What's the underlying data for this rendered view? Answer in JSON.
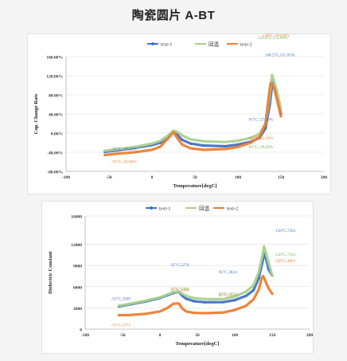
{
  "page": {
    "title": "陶瓷圆片 A-BT"
  },
  "chart_data": [
    {
      "type": "line",
      "xlabel": "Temperature[degC]",
      "ylabel": "Cap. Change Rate",
      "xlim": [
        -100,
        200
      ],
      "ylim": [
        -80,
        160
      ],
      "x_ticks": [
        "-100",
        "-50",
        "0",
        "50",
        "100",
        "150",
        "200"
      ],
      "y_ticks": [
        "-80.00%",
        "-40.00%",
        "0.00%",
        "40.00%",
        "80.00%",
        "120.00%",
        "160.00%"
      ],
      "grid": true,
      "legend_position": "top",
      "series": [
        {
          "name": "test-1",
          "color": "#4472c4",
          "marker": "circle",
          "points": [
            [
              -55,
              -39.21
            ],
            [
              -40,
              -36
            ],
            [
              -20,
              -31
            ],
            [
              0,
              -25
            ],
            [
              10,
              -20
            ],
            [
              18,
              -12
            ],
            [
              25,
              3
            ],
            [
              30,
              -5
            ],
            [
              35,
              -14
            ],
            [
              45,
              -22
            ],
            [
              60,
              -26
            ],
            [
              85,
              -27.56
            ],
            [
              100,
              -24
            ],
            [
              115,
              -18
            ],
            [
              125,
              -10
            ],
            [
              132,
              10
            ],
            [
              137,
              60
            ],
            [
              140.5,
              111.01
            ],
            [
              145,
              80
            ],
            [
              150,
              40
            ]
          ]
        },
        {
          "name": "回温",
          "color": "#a9d18e",
          "marker": "none",
          "points": [
            [
              -55,
              -37
            ],
            [
              -40,
              -34
            ],
            [
              -20,
              -29
            ],
            [
              0,
              -22
            ],
            [
              10,
              -16
            ],
            [
              18,
              -6
            ],
            [
              25,
              5
            ],
            [
              30,
              2
            ],
            [
              35,
              -5
            ],
            [
              45,
              -13
            ],
            [
              60,
              -17
            ],
            [
              85,
              -18.69
            ],
            [
              100,
              -16
            ],
            [
              115,
              -10
            ],
            [
              125,
              -2
            ],
            [
              132,
              20
            ],
            [
              137,
              80
            ],
            [
              139.6,
              121.66
            ],
            [
              145,
              90
            ],
            [
              150,
              50
            ]
          ]
        },
        {
          "name": "test-2",
          "color": "#ed7d31",
          "marker": "none",
          "points": [
            [
              -55,
              -45.86
            ],
            [
              -40,
              -43
            ],
            [
              -20,
              -40
            ],
            [
              0,
              -35
            ],
            [
              10,
              -28
            ],
            [
              18,
              -12
            ],
            [
              25,
              2
            ],
            [
              30,
              -12
            ],
            [
              35,
              -24
            ],
            [
              45,
              -32
            ],
            [
              60,
              -35
            ],
            [
              85,
              -33.39
            ],
            [
              100,
              -29
            ],
            [
              115,
              -20
            ],
            [
              125,
              -8
            ],
            [
              132,
              20
            ],
            [
              136,
              80
            ],
            [
              138,
              104.64
            ],
            [
              142,
              95
            ],
            [
              150,
              35
            ]
          ]
        }
      ],
      "annotations": [
        {
          "text": "-55°C,-39.21%",
          "color": "#4472c4",
          "x": -55,
          "y": -39.21
        },
        {
          "text": "-55°C,-45.86%",
          "color": "#ed7d31",
          "x": -55,
          "y": -45.86
        },
        {
          "text": "85°C,-27.56%",
          "color": "#4472c4",
          "x": 85,
          "y": -27.56
        },
        {
          "text": "85°C,-33.39%",
          "color": "#ed7d31",
          "x": 85,
          "y": -33.39
        },
        {
          "text": "85°C,-18.69%",
          "color": "#70ad47",
          "x": 85,
          "y": -18.69
        },
        {
          "text": "138°C,104.64%",
          "color": "#ed7d31",
          "x": 138,
          "y": 104.64
        },
        {
          "text": "139.6°C,121.66%",
          "color": "#70ad47",
          "x": 139.6,
          "y": 121.66
        },
        {
          "text": "140.5°C,111.01%",
          "color": "#4472c4",
          "x": 140.5,
          "y": 111.01
        }
      ]
    },
    {
      "type": "line",
      "xlabel": "Temperature[degC]",
      "ylabel": "Dielectric Constant",
      "xlim": [
        -100,
        200
      ],
      "ylim": [
        0,
        16000
      ],
      "x_ticks": [
        "-100",
        "-50",
        "0",
        "50",
        "100",
        "150",
        "200"
      ],
      "y_ticks": [
        "0",
        "3000",
        "6000",
        "9000",
        "12000",
        "16000"
      ],
      "y_tick_values": [
        0,
        3000,
        6000,
        9000,
        12000,
        16000
      ],
      "grid": true,
      "legend_position": "top",
      "series": [
        {
          "name": "test-1",
          "color": "#4472c4",
          "marker": "circle",
          "points": [
            [
              -55,
              3209
            ],
            [
              -40,
              3500
            ],
            [
              -20,
              3900
            ],
            [
              0,
              4400
            ],
            [
              10,
              4800
            ],
            [
              18,
              5100
            ],
            [
              25,
              5270
            ],
            [
              30,
              4700
            ],
            [
              35,
              4300
            ],
            [
              45,
              3950
            ],
            [
              60,
              3800
            ],
            [
              85,
              3824
            ],
            [
              100,
              4100
            ],
            [
              115,
              4700
            ],
            [
              125,
              5500
            ],
            [
              132,
              7200
            ],
            [
              137,
              9500
            ],
            [
              140,
              10800
            ],
            [
              145,
              8500
            ],
            [
              150,
              7561
            ]
          ]
        },
        {
          "name": "回温",
          "color": "#a9d18e",
          "marker": "none",
          "points": [
            [
              -55,
              3300
            ],
            [
              -40,
              3600
            ],
            [
              -20,
              4000
            ],
            [
              0,
              4500
            ],
            [
              10,
              4900
            ],
            [
              18,
              5200
            ],
            [
              25,
              5304
            ],
            [
              30,
              5000
            ],
            [
              35,
              4700
            ],
            [
              45,
              4400
            ],
            [
              60,
              4250
            ],
            [
              85,
              4253
            ],
            [
              100,
              4600
            ],
            [
              115,
              5300
            ],
            [
              125,
              6200
            ],
            [
              132,
              8000
            ],
            [
              137,
              10500
            ],
            [
              139,
              11700
            ],
            [
              145,
              9500
            ],
            [
              150,
              7561
            ]
          ]
        },
        {
          "name": "test-2",
          "color": "#ed7d31",
          "marker": "none",
          "points": [
            [
              -55,
              1973
            ],
            [
              -40,
              2000
            ],
            [
              -20,
              2150
            ],
            [
              0,
              2500
            ],
            [
              10,
              3000
            ],
            [
              18,
              3600
            ],
            [
              25,
              3644
            ],
            [
              30,
              2900
            ],
            [
              35,
              2500
            ],
            [
              45,
              2300
            ],
            [
              60,
              2250
            ],
            [
              85,
              2354
            ],
            [
              100,
              2700
            ],
            [
              115,
              3300
            ],
            [
              125,
              4200
            ],
            [
              132,
              5600
            ],
            [
              136,
              7200
            ],
            [
              138,
              7500
            ],
            [
              145,
              5800
            ],
            [
              150,
              4981
            ]
          ]
        }
      ],
      "annotations": [
        {
          "text": "-55°C,3209",
          "color": "#4472c4",
          "x": -55,
          "y": 3209
        },
        {
          "text": "-55°C,1973",
          "color": "#ed7d31",
          "x": -55,
          "y": 1973
        },
        {
          "text": "25°C,5270",
          "color": "#4472c4",
          "x": 25,
          "y": 5270
        },
        {
          "text": "25°C,3644",
          "color": "#ed7d31",
          "x": 25,
          "y": 3644
        },
        {
          "text": "25°C,5304",
          "color": "#70ad47",
          "x": 25,
          "y": 5304
        },
        {
          "text": "85°C,3824",
          "color": "#4472c4",
          "x": 85,
          "y": 3824
        },
        {
          "text": "85°C,2354",
          "color": "#ed7d31",
          "x": 85,
          "y": 2354
        },
        {
          "text": "85°C,4253",
          "color": "#70ad47",
          "x": 85,
          "y": 4253
        },
        {
          "text": "150°C,7561",
          "color": "#4472c4",
          "x": 150,
          "y": 7561
        },
        {
          "text": "150°C,4981",
          "color": "#ed7d31",
          "x": 150,
          "y": 4981
        },
        {
          "text": "150°C,7561",
          "color": "#70ad47",
          "x": 150,
          "y": 7561
        }
      ]
    }
  ]
}
